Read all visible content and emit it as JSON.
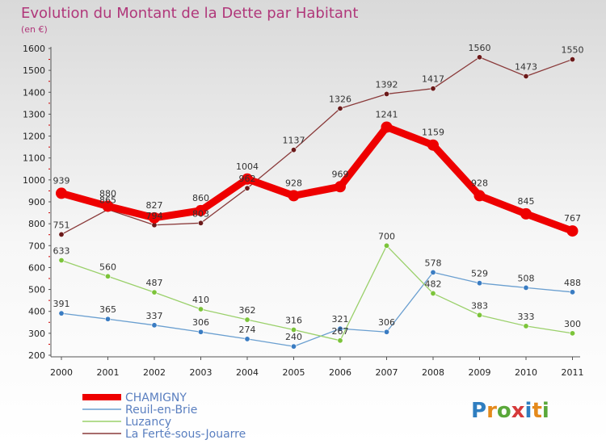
{
  "chart_data": {
    "type": "line",
    "title": "Evolution du Montant de la Dette par Habitant",
    "subtitle": "(en €)",
    "x": [
      "2000",
      "2001",
      "2002",
      "2003",
      "2004",
      "2005",
      "2006",
      "2007",
      "2008",
      "2009",
      "2010",
      "2011"
    ],
    "ylim": [
      200,
      1600
    ],
    "yticks": [
      200,
      300,
      400,
      500,
      600,
      700,
      800,
      900,
      1000,
      1100,
      1200,
      1300,
      1400,
      1500,
      1600
    ],
    "grid": false,
    "legend_position": "bottom-left",
    "series": [
      {
        "name": "CHAMIGNY",
        "color": "#ee0000",
        "highlight": true,
        "values": [
          939,
          880,
          827,
          860,
          1004,
          928,
          969,
          1241,
          1159,
          928,
          845,
          767
        ]
      },
      {
        "name": "Reuil-en-Brie",
        "color": "#6a9fd0",
        "marker": "#3a7cc2",
        "values": [
          391,
          365,
          337,
          306,
          274,
          240,
          321,
          306,
          578,
          529,
          508,
          488
        ]
      },
      {
        "name": "Luzancy",
        "color": "#9ad06a",
        "marker": "#7cc43a",
        "values": [
          633,
          560,
          487,
          410,
          362,
          316,
          267,
          700,
          482,
          383,
          333,
          300
        ]
      },
      {
        "name": "La Ferté-sous-Jouarre",
        "color": "#8a3a3a",
        "marker": "#6b1a1a",
        "values": [
          751,
          865,
          794,
          803,
          962,
          1137,
          1326,
          1392,
          1417,
          1560,
          1473,
          1550
        ]
      }
    ]
  },
  "watermark": "Proxiti"
}
